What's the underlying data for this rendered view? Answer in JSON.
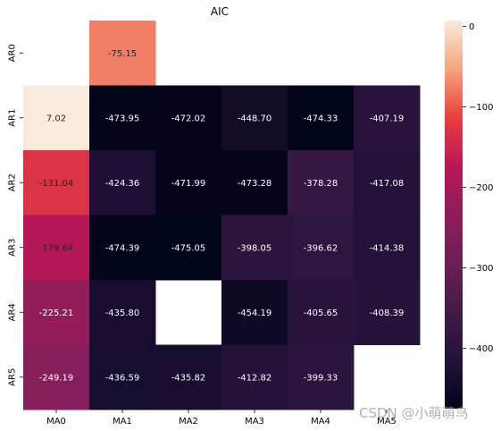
{
  "chart_data": {
    "type": "heatmap",
    "title": "AIC",
    "rows": [
      "AR0",
      "AR1",
      "AR2",
      "AR3",
      "AR4",
      "AR5"
    ],
    "columns": [
      "MA0",
      "MA1",
      "MA2",
      "MA3",
      "MA4",
      "MA5"
    ],
    "values": [
      [
        null,
        -75.15,
        null,
        null,
        null,
        null
      ],
      [
        7.02,
        -473.95,
        -472.02,
        -448.7,
        -474.33,
        -407.19
      ],
      [
        -131.04,
        -424.36,
        -471.99,
        -473.28,
        -378.28,
        -417.08
      ],
      [
        -179.64,
        -474.39,
        -475.05,
        -398.05,
        -396.62,
        -414.38
      ],
      [
        -225.21,
        -435.8,
        null,
        -454.19,
        -405.65,
        -408.39
      ],
      [
        -249.19,
        -436.59,
        -435.82,
        -412.82,
        -399.33,
        null
      ]
    ],
    "labels": [
      [
        "",
        "-75.15",
        "",
        "",
        "",
        ""
      ],
      [
        "7.02",
        "-473.95",
        "-472.02",
        "-448.70",
        "-474.33",
        "-407.19"
      ],
      [
        "-131.04",
        "-424.36",
        "-471.99",
        "-473.28",
        "-378.28",
        "-417.08"
      ],
      [
        "-179.64",
        "-474.39",
        "-475.05",
        "-398.05",
        "-396.62",
        "-414.38"
      ],
      [
        "-225.21",
        "-435.80",
        "",
        "-454.19",
        "-405.65",
        "-408.39"
      ],
      [
        "-249.19",
        "-436.59",
        "-435.82",
        "-412.82",
        "-399.33",
        ""
      ]
    ],
    "colorbar": {
      "vmin": -475.05,
      "vmax": 7.02,
      "ticks": [
        0,
        -100,
        -200,
        -300,
        -400
      ],
      "tick_labels": [
        "0",
        "−100",
        "−200",
        "−300",
        "−400"
      ],
      "colormap": "rocket"
    },
    "grid": false
  },
  "watermark": "CSDN @小萌萌鸟"
}
